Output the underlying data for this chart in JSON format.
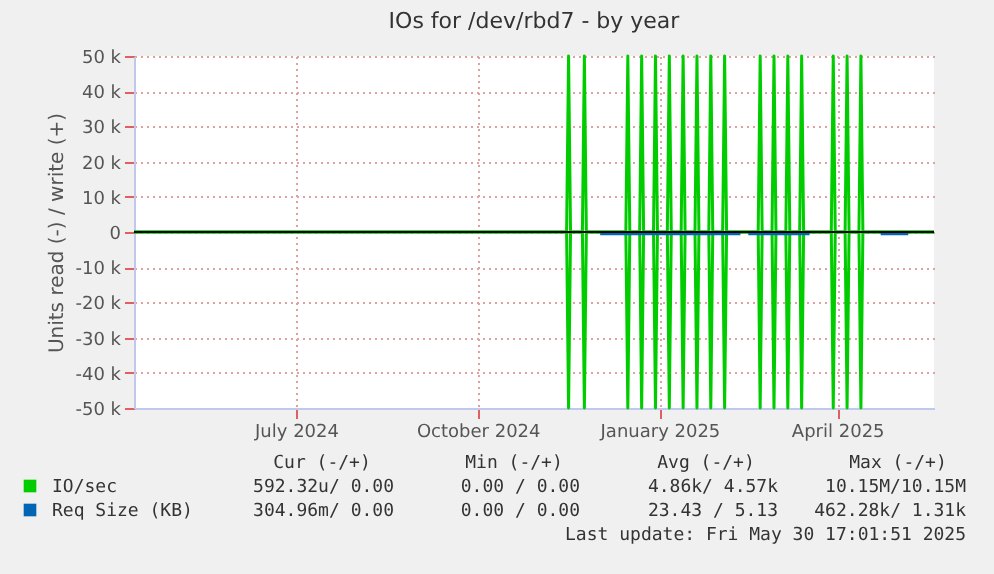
{
  "chart_data": {
    "type": "line",
    "title": "IOs for /dev/rbd7 - by year",
    "ylabel": "Units read (-) / write (+)",
    "xlim": [
      "2024-04-10",
      "2025-05-20"
    ],
    "xticks": [
      {
        "value": "2024-07-01",
        "label": "July 2024"
      },
      {
        "value": "2024-10-01",
        "label": "October 2024"
      },
      {
        "value": "2025-01-01",
        "label": "January 2025"
      },
      {
        "value": "2025-04-01",
        "label": "April 2025"
      }
    ],
    "ylim": [
      -50000,
      50000
    ],
    "yticks": [
      {
        "value": -50000,
        "label": "-50 k"
      },
      {
        "value": -40000,
        "label": "-40 k"
      },
      {
        "value": -30000,
        "label": "-30 k"
      },
      {
        "value": -20000,
        "label": "-20 k"
      },
      {
        "value": -10000,
        "label": "-10 k"
      },
      {
        "value": 0,
        "label": "0"
      },
      {
        "value": 10000,
        "label": "10 k"
      },
      {
        "value": 20000,
        "label": "20 k"
      },
      {
        "value": 30000,
        "label": "30 k"
      },
      {
        "value": 40000,
        "label": "40 k"
      },
      {
        "value": 50000,
        "label": "50 k"
      }
    ],
    "grid": true,
    "legend": "bottom",
    "marker": "none",
    "line_style": "solid",
    "ref_lines": [
      {
        "axis": "y",
        "value": 0,
        "color": "#000000"
      }
    ],
    "series": [
      {
        "name": "IO/sec",
        "color": "#00cc00",
        "x": [
          "2024-04-10",
          "2024-11-15",
          "2024-11-16",
          "2024-11-17",
          "2024-11-23",
          "2024-11-24",
          "2024-11-25",
          "2024-12-15",
          "2024-12-16",
          "2024-12-17",
          "2024-12-22",
          "2024-12-23",
          "2024-12-24",
          "2024-12-29",
          "2024-12-30",
          "2024-12-31",
          "2025-01-05",
          "2025-01-06",
          "2025-01-07",
          "2025-01-12",
          "2025-01-13",
          "2025-01-14",
          "2025-01-19",
          "2025-01-20",
          "2025-01-21",
          "2025-01-26",
          "2025-01-27",
          "2025-01-28",
          "2025-02-02",
          "2025-02-03",
          "2025-02-04",
          "2025-02-20",
          "2025-02-21",
          "2025-02-22",
          "2025-02-27",
          "2025-02-28",
          "2025-03-01",
          "2025-03-06",
          "2025-03-07",
          "2025-03-08",
          "2025-03-13",
          "2025-03-14",
          "2025-03-15",
          "2025-03-29",
          "2025-03-30",
          "2025-03-31",
          "2025-04-05",
          "2025-04-06",
          "2025-04-07",
          "2025-04-12",
          "2025-04-13",
          "2025-04-14",
          "2025-05-20"
        ],
        "values": [
          0,
          0,
          50000,
          0,
          0,
          50000,
          0,
          0,
          50000,
          0,
          0,
          50000,
          0,
          0,
          50000,
          0,
          0,
          50000,
          0,
          0,
          50000,
          0,
          0,
          50000,
          0,
          0,
          50000,
          0,
          0,
          50000,
          0,
          0,
          50000,
          0,
          0,
          50000,
          0,
          0,
          50000,
          0,
          0,
          50000,
          0,
          0,
          50000,
          0,
          0,
          50000,
          0,
          0,
          50000,
          0,
          0
        ]
      },
      {
        "color": "#00cc00",
        "x": [
          "2024-04-10",
          "2024-11-15",
          "2024-11-16",
          "2024-11-17",
          "2024-11-23",
          "2024-11-24",
          "2024-11-25",
          "2024-12-15",
          "2024-12-16",
          "2024-12-17",
          "2024-12-22",
          "2024-12-23",
          "2024-12-24",
          "2024-12-29",
          "2024-12-30",
          "2024-12-31",
          "2025-01-05",
          "2025-01-06",
          "2025-01-07",
          "2025-01-12",
          "2025-01-13",
          "2025-01-14",
          "2025-01-19",
          "2025-01-20",
          "2025-01-21",
          "2025-01-26",
          "2025-01-27",
          "2025-01-28",
          "2025-02-02",
          "2025-02-03",
          "2025-02-04",
          "2025-02-20",
          "2025-02-21",
          "2025-02-22",
          "2025-02-27",
          "2025-02-28",
          "2025-03-01",
          "2025-03-06",
          "2025-03-07",
          "2025-03-08",
          "2025-03-13",
          "2025-03-14",
          "2025-03-15",
          "2025-03-29",
          "2025-03-30",
          "2025-03-31",
          "2025-04-05",
          "2025-04-06",
          "2025-04-07",
          "2025-04-12",
          "2025-04-13",
          "2025-04-14",
          "2025-05-20"
        ],
        "values": [
          0,
          0,
          -50000,
          0,
          0,
          -50000,
          0,
          0,
          -50000,
          0,
          0,
          -50000,
          0,
          0,
          -50000,
          0,
          0,
          -50000,
          0,
          0,
          -50000,
          0,
          0,
          -50000,
          0,
          0,
          -50000,
          0,
          0,
          -50000,
          0,
          0,
          -50000,
          0,
          0,
          -50000,
          0,
          0,
          -50000,
          0,
          0,
          -50000,
          0,
          0,
          -50000,
          0,
          0,
          -50000,
          0,
          0,
          -50000,
          0,
          0
        ]
      },
      {
        "name": "Req Size (KB)",
        "color": "#0066b3",
        "x": [
          "2024-12-02",
          "2025-02-11",
          "2025-02-13",
          "2025-02-15",
          "2025-03-18",
          "2025-04-01",
          "2025-04-23",
          "2025-05-07"
        ],
        "values": [
          -500,
          -500,
          null,
          -500,
          -500,
          null,
          -500,
          -500
        ]
      }
    ],
    "annotations": [
      "Cur (-/+)",
      "Min (-/+)",
      "Avg (-/+)",
      "Max (-/+)",
      "592.32u/ 0.00",
      "0.00 / 0.00",
      "4.86k/ 4.57k",
      "10.15M/10.15M",
      "304.96m/ 0.00",
      "0.00 / 0.00",
      "23.43 / 5.13",
      "462.28k/ 1.31k",
      "Last update: Fri May 30 17:01:51 2025"
    ]
  }
}
